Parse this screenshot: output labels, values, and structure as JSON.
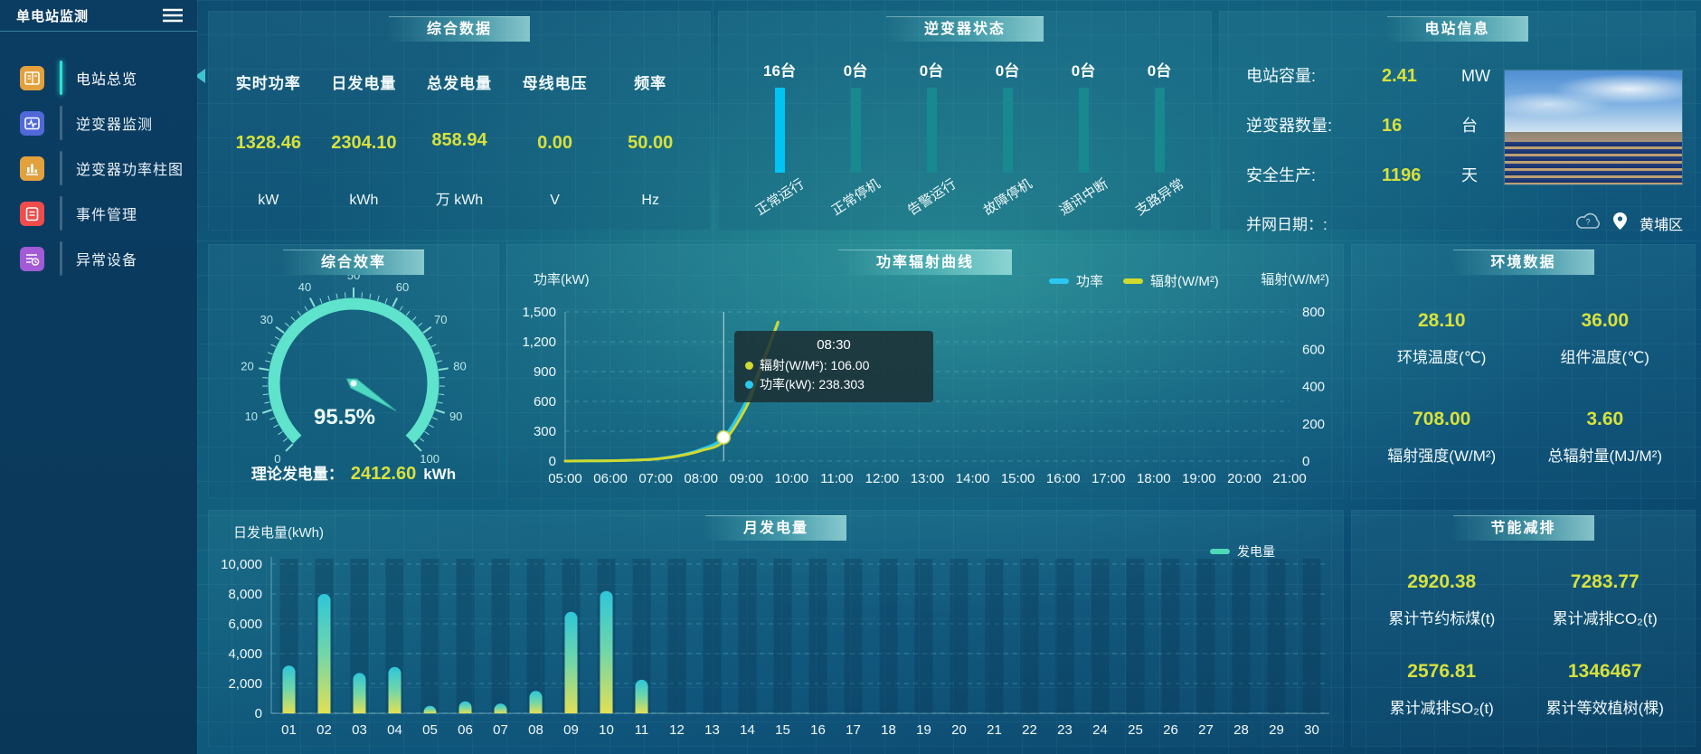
{
  "app": {
    "title": "单电站监测"
  },
  "sidebar": {
    "items": [
      {
        "label": "电站总览",
        "icon": "station-overview-icon",
        "color": "#e2a13c",
        "active": true
      },
      {
        "label": "逆变器监测",
        "icon": "inverter-monitor-icon",
        "color": "#5168d8",
        "active": false
      },
      {
        "label": "逆变器功率柱图",
        "icon": "inverter-power-bars-icon",
        "color": "#e2a13c",
        "active": false
      },
      {
        "label": "事件管理",
        "icon": "event-management-icon",
        "color": "#ef4c4c",
        "active": false
      },
      {
        "label": "异常设备",
        "icon": "abnormal-device-icon",
        "color": "#a15bd5",
        "active": false
      }
    ]
  },
  "panels": {
    "summary": {
      "title": "综合数据",
      "metrics": [
        {
          "label": "实时功率",
          "value": "1328.46",
          "unit": "kW"
        },
        {
          "label": "日发电量",
          "value": "2304.10",
          "unit": "kWh"
        },
        {
          "label": "总发电量",
          "value": "858.94",
          "unit": "万 kWh"
        },
        {
          "label": "母线电压",
          "value": "0.00",
          "unit": "V"
        },
        {
          "label": "频率",
          "value": "50.00",
          "unit": "Hz"
        }
      ]
    },
    "inverter_status": {
      "title": "逆变器状态"
    },
    "station_info": {
      "title": "电站信息",
      "rows": [
        {
          "label": "电站容量:",
          "value": "2.41",
          "unit": "MW"
        },
        {
          "label": "逆变器数量:",
          "value": "16",
          "unit": "台"
        },
        {
          "label": "安全生产:",
          "value": "1196",
          "unit": "天"
        }
      ],
      "grid_date_label": "并网日期：:",
      "location": "黄埔区"
    },
    "efficiency": {
      "title": "综合效率",
      "theory_label": "理论发电量：",
      "theory_value": "2412.60",
      "theory_unit": "kWh"
    },
    "curve": {
      "title": "功率辐射曲线"
    },
    "environment": {
      "title": "环境数据",
      "metrics": [
        {
          "value": "28.10",
          "label": "环境温度(℃)"
        },
        {
          "value": "36.00",
          "label": "组件温度(℃)"
        },
        {
          "value": "708.00",
          "label": "辐射强度(W/M²)"
        },
        {
          "value": "3.60",
          "label": "总辐射量(MJ/M²)"
        }
      ]
    },
    "monthly": {
      "title": "月发电量"
    },
    "saving": {
      "title": "节能减排",
      "metrics": [
        {
          "value": "2920.38",
          "label": "累计节约标煤(t)"
        },
        {
          "value": "7283.77",
          "label": "累计减排CO₂(t)"
        },
        {
          "value": "2576.81",
          "label": "累计减排SO₂(t)"
        },
        {
          "value": "1346467",
          "label": "累计等效植树(棵)"
        }
      ]
    }
  },
  "colors": {
    "value_yellow": "#d7e13c",
    "power_cyan": "#29c8f2",
    "radiation_yellow": "#cfd92e",
    "bar_active": "#00c4f2",
    "bar_idle": "#17898f",
    "gauge_teal": "#5fe3cc"
  },
  "chart_data": [
    {
      "id": "inverter_status",
      "type": "bar",
      "categories": [
        "正常运行",
        "正常停机",
        "告警运行",
        "故障停机",
        "通讯中断",
        "支路异常"
      ],
      "values": [
        16,
        0,
        0,
        0,
        0,
        0
      ],
      "value_labels": [
        "16台",
        "0台",
        "0台",
        "0台",
        "0台",
        "0台"
      ]
    },
    {
      "id": "efficiency_gauge",
      "type": "gauge",
      "value": 95.5,
      "display": "95.5%",
      "min": 0,
      "max": 100,
      "major_ticks": [
        0,
        10,
        20,
        30,
        40,
        50,
        60,
        70,
        80,
        90,
        100
      ]
    },
    {
      "id": "power_radiation",
      "type": "line",
      "title": "功率辐射曲线",
      "x_ticks": [
        "05:00",
        "06:00",
        "07:00",
        "08:00",
        "09:00",
        "10:00",
        "11:00",
        "12:00",
        "13:00",
        "14:00",
        "15:00",
        "16:00",
        "17:00",
        "18:00",
        "19:00",
        "20:00",
        "21:00"
      ],
      "x_range": [
        5,
        21
      ],
      "left_axis": {
        "name": "功率(kW)",
        "ticks": [
          "1,500",
          "1,200",
          "900",
          "600",
          "300",
          "0"
        ],
        "max": 1500
      },
      "right_axis": {
        "name": "辐射(W/M²)",
        "ticks": [
          "800",
          "600",
          "400",
          "200",
          "0"
        ],
        "max": 800
      },
      "legend": [
        {
          "label": "功率",
          "color": "#29c8f2"
        },
        {
          "label": "辐射(W/M²)",
          "color": "#cfd92e"
        }
      ],
      "series": [
        {
          "name": "功率",
          "axis": "left",
          "color": "#29c8f2",
          "points": [
            [
              5,
              0
            ],
            [
              5.5,
              2
            ],
            [
              6,
              4
            ],
            [
              6.5,
              9
            ],
            [
              7,
              22
            ],
            [
              7.5,
              55
            ],
            [
              8,
              118
            ],
            [
              8.5,
              238.303
            ],
            [
              9,
              600
            ],
            [
              9.25,
              880
            ],
            [
              9.5,
              1160
            ],
            [
              9.7,
              1380
            ]
          ]
        },
        {
          "name": "辐射",
          "axis": "right",
          "color": "#cfd92e",
          "points": [
            [
              5,
              0
            ],
            [
              5.5,
              1
            ],
            [
              6,
              2
            ],
            [
              6.5,
              5
            ],
            [
              7,
              11
            ],
            [
              7.5,
              27
            ],
            [
              8,
              56
            ],
            [
              8.5,
              106
            ],
            [
              9,
              290
            ],
            [
              9.25,
              450
            ],
            [
              9.5,
              615
            ],
            [
              9.7,
              745
            ]
          ]
        }
      ],
      "tooltip": {
        "time_x": 8.5,
        "title": "08:30",
        "lines": [
          {
            "color": "#cfd92e",
            "text": "辐射(W/M²): 106.00"
          },
          {
            "color": "#29c8f2",
            "text": "功率(kW): 238.303"
          }
        ]
      }
    },
    {
      "id": "monthly_generation",
      "type": "bar",
      "axis_name": "日发电量(kWh)",
      "y_ticks": [
        "10,000",
        "8,000",
        "6,000",
        "4,000",
        "2,000",
        "0"
      ],
      "ymax": 10000,
      "legend": {
        "label": "发电量"
      },
      "categories": [
        "01",
        "02",
        "03",
        "04",
        "05",
        "06",
        "07",
        "08",
        "09",
        "10",
        "11",
        "12",
        "13",
        "14",
        "15",
        "16",
        "17",
        "18",
        "19",
        "20",
        "21",
        "22",
        "23",
        "24",
        "25",
        "26",
        "27",
        "28",
        "29",
        "30"
      ],
      "values": [
        3200,
        8000,
        2700,
        3100,
        500,
        800,
        650,
        1500,
        6800,
        8200,
        2250,
        0,
        0,
        0,
        0,
        0,
        0,
        0,
        0,
        0,
        0,
        0,
        0,
        0,
        0,
        0,
        0,
        0,
        0,
        0
      ]
    }
  ]
}
